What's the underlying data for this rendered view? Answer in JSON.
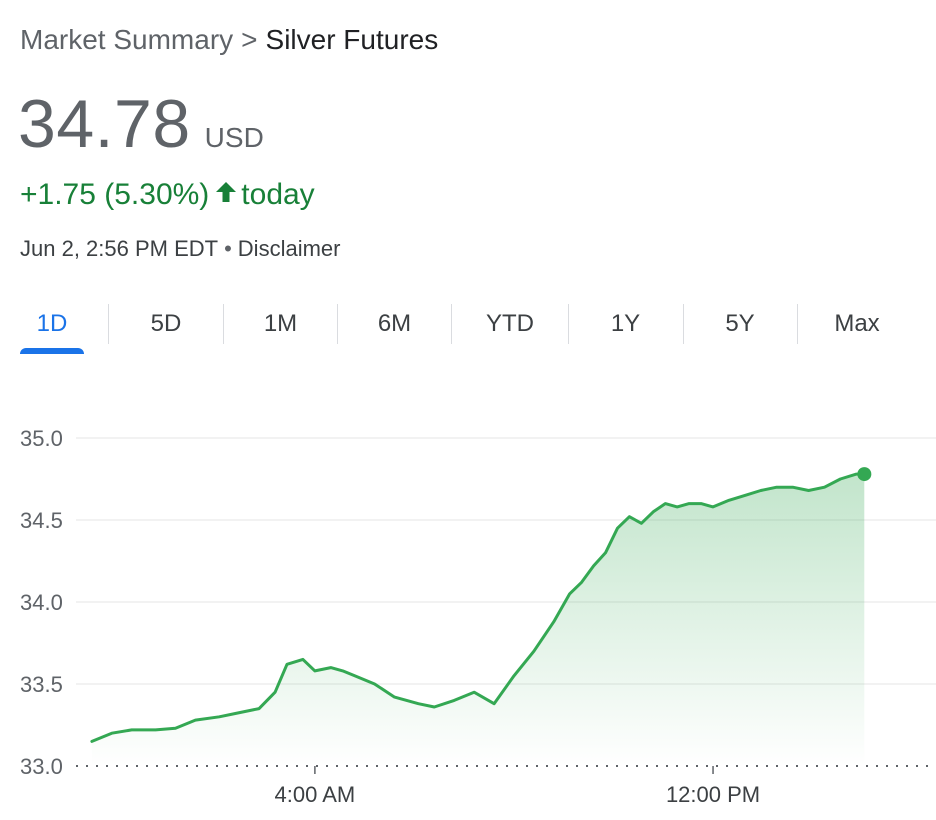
{
  "breadcrumb": {
    "root": "Market Summary",
    "separator": ">",
    "current": "Silver Futures"
  },
  "quote": {
    "price": "34.78",
    "currency": "USD",
    "change": "+1.75 (5.30%)",
    "change_arrow_icon": "arrow-up-icon",
    "change_suffix": "today",
    "timestamp": "Jun 2, 2:56 PM EDT",
    "disclaimer": "Disclaimer"
  },
  "tabs": [
    "1D",
    "5D",
    "1M",
    "6M",
    "YTD",
    "1Y",
    "5Y",
    "Max"
  ],
  "active_tab": "1D",
  "colors": {
    "up": "#188038",
    "line": "#34a853",
    "accent": "#1a73e8",
    "muted": "#5f6368"
  },
  "chart_data": {
    "type": "area",
    "ylim": [
      33.0,
      35.0
    ],
    "yticks": [
      33.0,
      33.5,
      34.0,
      34.5,
      35.0
    ],
    "ytick_labels": [
      "33.0",
      "33.5",
      "34.0",
      "34.5",
      "35.0"
    ],
    "xlim": [
      -2.0,
      19.6
    ],
    "xticks": [
      4,
      14
    ],
    "xtick_labels": [
      "4:00 AM",
      "12:00 PM"
    ],
    "baseline": 33.0,
    "grid": true,
    "series": [
      {
        "x": [
          -1.6,
          -1.1,
          -0.6,
          0.0,
          0.5,
          1.0,
          1.6,
          2.0,
          2.6,
          3.0,
          3.3,
          3.7,
          4.0,
          4.4,
          4.7,
          5.0,
          5.5,
          6.0,
          6.6,
          7.0,
          7.5,
          8.0,
          8.5,
          9.0,
          9.5,
          10.0,
          10.4,
          10.7,
          11.0,
          11.3,
          11.6,
          11.9,
          12.2,
          12.5,
          12.8,
          13.1,
          13.4,
          13.7,
          14.0,
          14.4,
          14.8,
          15.2,
          15.6,
          16.0,
          16.4,
          16.8,
          17.2,
          17.6,
          17.8
        ],
        "y": [
          33.15,
          33.2,
          33.22,
          33.22,
          33.23,
          33.28,
          33.3,
          33.32,
          33.35,
          33.45,
          33.62,
          33.65,
          33.58,
          33.6,
          33.58,
          33.55,
          33.5,
          33.42,
          33.38,
          33.36,
          33.4,
          33.45,
          33.38,
          33.55,
          33.7,
          33.88,
          34.05,
          34.12,
          34.22,
          34.3,
          34.45,
          34.52,
          34.48,
          34.55,
          34.6,
          34.58,
          34.6,
          34.6,
          34.58,
          34.62,
          34.65,
          34.68,
          34.7,
          34.7,
          34.68,
          34.7,
          34.75,
          34.78,
          34.78
        ]
      }
    ]
  }
}
